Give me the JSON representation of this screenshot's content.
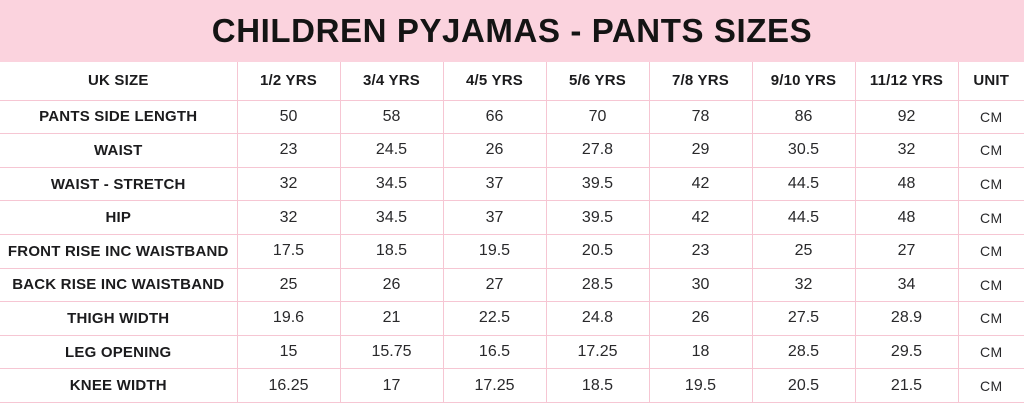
{
  "title": "CHILDREN PYJAMAS - PANTS SIZES",
  "colors": {
    "banner_pink": "#fbd3de",
    "grid_pink": "#f6c6d3",
    "text": "#1b1b1d",
    "background": "#ffffff"
  },
  "table": {
    "columns": [
      "UK SIZE",
      "1/2 YRS",
      "3/4 YRS",
      "4/5 YRS",
      "5/6 YRS",
      "7/8 YRS",
      "9/10 YRS",
      "11/12 YRS",
      "UNIT"
    ],
    "rows": [
      {
        "label": "PANTS SIDE LENGTH",
        "values": [
          "50",
          "58",
          "66",
          "70",
          "78",
          "86",
          "92"
        ],
        "unit": "CM"
      },
      {
        "label": "WAIST",
        "values": [
          "23",
          "24.5",
          "26",
          "27.8",
          "29",
          "30.5",
          "32"
        ],
        "unit": "CM"
      },
      {
        "label": "WAIST - STRETCH",
        "values": [
          "32",
          "34.5",
          "37",
          "39.5",
          "42",
          "44.5",
          "48"
        ],
        "unit": "CM"
      },
      {
        "label": "HIP",
        "values": [
          "32",
          "34.5",
          "37",
          "39.5",
          "42",
          "44.5",
          "48"
        ],
        "unit": "CM"
      },
      {
        "label": "FRONT RISE INC WAISTBAND",
        "values": [
          "17.5",
          "18.5",
          "19.5",
          "20.5",
          "23",
          "25",
          "27"
        ],
        "unit": "CM"
      },
      {
        "label": "BACK RISE INC WAISTBAND",
        "values": [
          "25",
          "26",
          "27",
          "28.5",
          "30",
          "32",
          "34"
        ],
        "unit": "CM"
      },
      {
        "label": "THIGH WIDTH",
        "values": [
          "19.6",
          "21",
          "22.5",
          "24.8",
          "26",
          "27.5",
          "28.9"
        ],
        "unit": "CM"
      },
      {
        "label": "LEG OPENING",
        "values": [
          "15",
          "15.75",
          "16.5",
          "17.25",
          "18",
          "28.5",
          "29.5"
        ],
        "unit": "CM"
      },
      {
        "label": "KNEE WIDTH",
        "values": [
          "16.25",
          "17",
          "17.25",
          "18.5",
          "19.5",
          "20.5",
          "21.5"
        ],
        "unit": "CM"
      }
    ]
  }
}
